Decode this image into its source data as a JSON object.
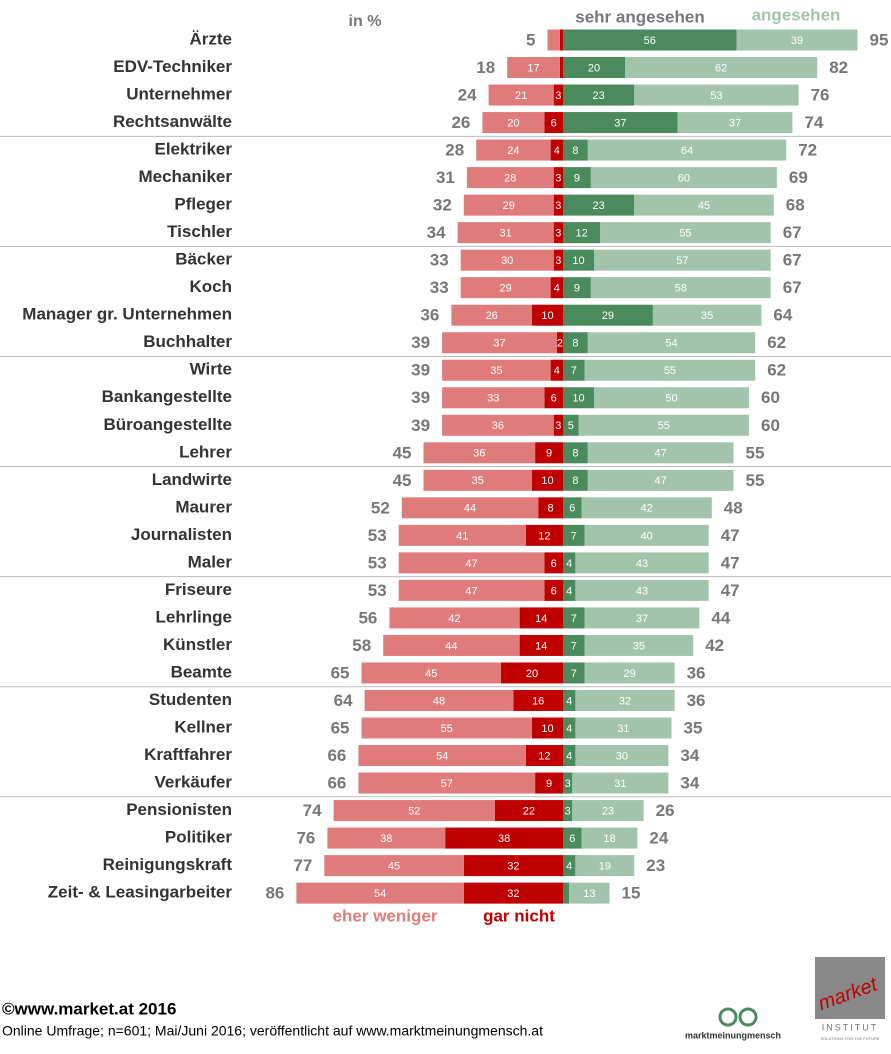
{
  "chart_data": {
    "type": "bar",
    "stacked": true,
    "unit_label": "in %",
    "categories": [
      "Ärzte",
      "EDV-Techniker",
      "Unternehmer",
      "Rechtsanwälte",
      "Elektriker",
      "Mechaniker",
      "Pfleger",
      "Tischler",
      "Bäcker",
      "Koch",
      "Manager gr. Unternehmen",
      "Buchhalter",
      "Wirte",
      "Bankangestellte",
      "Büroangestellte",
      "Lehrer",
      "Landwirte",
      "Maurer",
      "Journalisten",
      "Maler",
      "Friseure",
      "Lehrlinge",
      "Künstler",
      "Beamte",
      "Studenten",
      "Kellner",
      "Kraftfahrer",
      "Verkäufer",
      "Pensionisten",
      "Politiker",
      "Reinigungskraft",
      "Zeit- & Leasingarbeiter"
    ],
    "series": [
      {
        "name": "eher weniger",
        "color": "#e07b7b",
        "side": "left",
        "values": [
          4,
          17,
          21,
          20,
          24,
          28,
          29,
          31,
          30,
          29,
          26,
          37,
          35,
          33,
          36,
          36,
          35,
          44,
          41,
          47,
          47,
          42,
          44,
          45,
          48,
          55,
          54,
          57,
          52,
          38,
          45,
          54
        ],
        "value_labels": [
          null,
          "17",
          "21",
          "20",
          "24",
          "28",
          "29",
          "31",
          "30",
          "29",
          "26",
          "37",
          "35",
          "33",
          "36",
          "36",
          "35",
          "44",
          "41",
          "47",
          "47",
          "42",
          "44",
          "45",
          "48",
          "55",
          "54",
          "57",
          "52",
          "38",
          "45",
          "54"
        ]
      },
      {
        "name": "gar nicht",
        "color": "#c00000",
        "side": "left",
        "values": [
          1,
          1,
          3,
          6,
          4,
          3,
          3,
          3,
          3,
          4,
          10,
          2,
          4,
          6,
          3,
          9,
          10,
          8,
          12,
          6,
          6,
          14,
          14,
          20,
          16,
          10,
          12,
          9,
          22,
          38,
          32,
          32
        ],
        "value_labels": [
          null,
          null,
          "3",
          "6",
          "4",
          "3",
          "3",
          "3",
          "3",
          "4",
          "10",
          "2",
          "4",
          "6",
          "3",
          "9",
          "10",
          "8",
          "12",
          "6",
          "6",
          "14",
          "14",
          "20",
          "16",
          "10",
          "12",
          "9",
          "22",
          "38",
          "32",
          "32"
        ]
      },
      {
        "name": "sehr angesehen",
        "color": "#4a8a5c",
        "side": "right",
        "values": [
          56,
          20,
          23,
          37,
          8,
          9,
          23,
          12,
          10,
          9,
          29,
          8,
          7,
          10,
          5,
          8,
          8,
          6,
          7,
          4,
          4,
          7,
          7,
          7,
          4,
          4,
          4,
          3,
          3,
          6,
          4,
          2
        ],
        "value_labels": [
          "56",
          "20",
          "23",
          "37",
          "8",
          "9",
          "23",
          "12",
          "10",
          "9",
          "29",
          "8",
          "7",
          "10",
          "5",
          "8",
          "8",
          "6",
          "7",
          "4",
          "4",
          "7",
          "7",
          "7",
          "4",
          "4",
          "4",
          "3",
          "3",
          "6",
          "4",
          null
        ]
      },
      {
        "name": "angesehen",
        "color": "#a2c4ab",
        "side": "right",
        "values": [
          39,
          62,
          53,
          37,
          64,
          60,
          45,
          55,
          57,
          58,
          35,
          54,
          55,
          50,
          55,
          47,
          47,
          42,
          40,
          43,
          43,
          37,
          35,
          29,
          32,
          31,
          30,
          31,
          23,
          18,
          19,
          13
        ],
        "value_labels": [
          "39",
          "62",
          "53",
          "37",
          "64",
          "60",
          "45",
          "55",
          "57",
          "58",
          "35",
          "54",
          "55",
          "50",
          "55",
          "47",
          "47",
          "42",
          "40",
          "43",
          "43",
          "37",
          "35",
          "29",
          "32",
          "31",
          "30",
          "31",
          "23",
          "18",
          "19",
          "13"
        ]
      }
    ],
    "left_totals": [
      5,
      18,
      24,
      26,
      28,
      31,
      32,
      34,
      33,
      33,
      36,
      39,
      39,
      39,
      39,
      45,
      45,
      52,
      53,
      53,
      53,
      56,
      58,
      65,
      64,
      65,
      66,
      66,
      74,
      76,
      77,
      86
    ],
    "right_totals": [
      95,
      82,
      76,
      74,
      72,
      69,
      68,
      67,
      67,
      67,
      64,
      62,
      62,
      60,
      60,
      55,
      55,
      48,
      47,
      47,
      47,
      44,
      42,
      36,
      36,
      35,
      34,
      34,
      26,
      24,
      23,
      15
    ]
  },
  "footer": {
    "copyright": "©www.market.at 2016",
    "source": "Online Umfrage; n=601; Mai/Juni 2016; veröffentlicht auf www.marktmeinungmensch.at"
  },
  "logos": {
    "mmm": "marktmeinungmensch",
    "market": "market",
    "institut": "INSTITUT",
    "slogan": "SOLUTIONS FOR THE FUTURE"
  }
}
